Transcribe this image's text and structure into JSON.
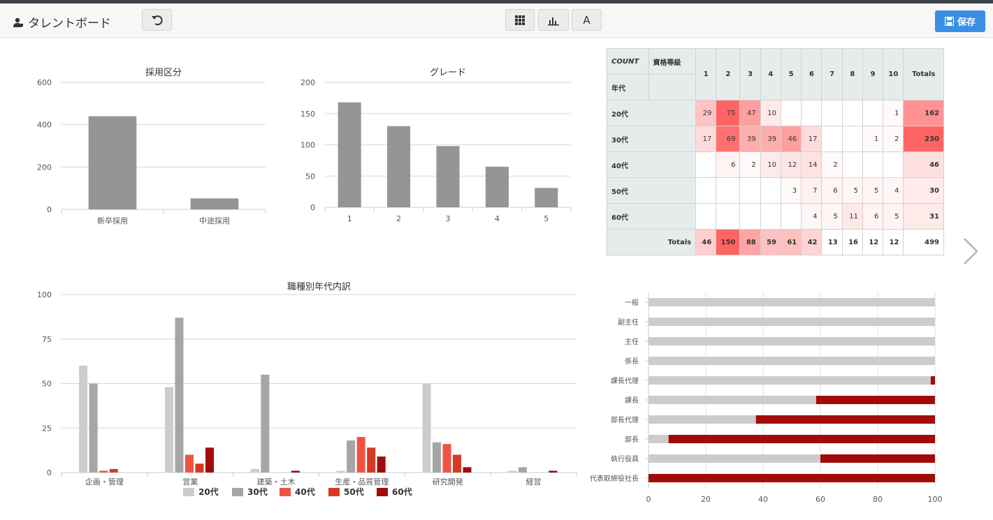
{
  "app": {
    "title": "タレントボード",
    "save_label": "保存",
    "format_button_label": "A"
  },
  "colors": {
    "accent": "#3a8ee6",
    "bar_gray": "#959595",
    "age_20": "#cccccc",
    "age_30": "#a6a6a6",
    "age_40": "#ef5442",
    "age_50": "#d63a22",
    "age_60": "#a30b0b"
  },
  "pivot": {
    "corner_label": "COUNT",
    "col_field_label": "資格等級",
    "row_field_label": "年代",
    "columns": [
      "1",
      "2",
      "3",
      "4",
      "5",
      "6",
      "7",
      "8",
      "9",
      "10",
      "Totals"
    ],
    "rows": [
      {
        "label": "20代",
        "cells": [
          "29",
          "75",
          "47",
          "10",
          "",
          "",
          "",
          "",
          "",
          "1",
          "162"
        ]
      },
      {
        "label": "30代",
        "cells": [
          "17",
          "69",
          "39",
          "39",
          "46",
          "17",
          "",
          "",
          "1",
          "2",
          "230"
        ]
      },
      {
        "label": "40代",
        "cells": [
          "",
          "6",
          "2",
          "10",
          "12",
          "14",
          "2",
          "",
          "",
          "",
          "46"
        ]
      },
      {
        "label": "50代",
        "cells": [
          "",
          "",
          "",
          "",
          "3",
          "7",
          "6",
          "5",
          "5",
          "4",
          "30"
        ]
      },
      {
        "label": "60代",
        "cells": [
          "",
          "",
          "",
          "",
          "",
          "4",
          "5",
          "11",
          "6",
          "5",
          "31"
        ]
      }
    ],
    "totals_label": "Totals",
    "totals": [
      "46",
      "150",
      "88",
      "59",
      "61",
      "42",
      "13",
      "16",
      "12",
      "12",
      "499"
    ]
  },
  "chart_data": [
    {
      "type": "bar",
      "title": "採用区分",
      "categories": [
        "新卒採用",
        "中途採用"
      ],
      "values": [
        440,
        52
      ],
      "ylim": [
        0,
        600
      ],
      "yticks": [
        0,
        200,
        400,
        600
      ],
      "grid": true
    },
    {
      "type": "bar",
      "title": "グレード",
      "categories": [
        "1",
        "2",
        "3",
        "4",
        "5"
      ],
      "values": [
        168,
        130,
        98,
        65,
        31
      ],
      "ylim": [
        0,
        200
      ],
      "yticks": [
        0,
        50,
        100,
        150,
        200
      ],
      "grid": true
    },
    {
      "type": "bar",
      "title": "職種別年代内訳",
      "categories": [
        "企画・管理",
        "営業",
        "建築・土木",
        "生産・品質管理",
        "研究開発",
        "経営"
      ],
      "series": [
        {
          "name": "20代",
          "values": [
            60,
            48,
            2,
            1,
            50,
            1
          ]
        },
        {
          "name": "30代",
          "values": [
            50,
            87,
            55,
            18,
            17,
            3
          ]
        },
        {
          "name": "40代",
          "values": [
            1,
            10,
            0,
            20,
            16,
            0
          ]
        },
        {
          "name": "50代",
          "values": [
            2,
            5,
            0,
            14,
            10,
            0
          ]
        },
        {
          "name": "60代",
          "values": [
            0,
            14,
            1,
            9,
            3,
            1
          ]
        }
      ],
      "ylim": [
        0,
        100
      ],
      "yticks": [
        0,
        25,
        50,
        75,
        100
      ],
      "legend": "bottom",
      "grid": true
    },
    {
      "type": "bar",
      "orientation": "horizontal",
      "stacked": true,
      "categories": [
        "一般",
        "副主任",
        "主任",
        "係長",
        "課長代理",
        "課長",
        "部長代理",
        "部長",
        "執行役員",
        "代表取締役社長"
      ],
      "series": [
        {
          "values": [
            100,
            100,
            100,
            100,
            98.5,
            58.5,
            37.5,
            7,
            60,
            0
          ]
        },
        {
          "values": [
            0,
            0,
            0,
            0,
            1.5,
            41.5,
            62.5,
            93,
            40,
            100
          ]
        }
      ],
      "xlim": [
        0,
        100
      ],
      "xticks": [
        0,
        20,
        40,
        60,
        80,
        100
      ],
      "grid": true
    }
  ]
}
